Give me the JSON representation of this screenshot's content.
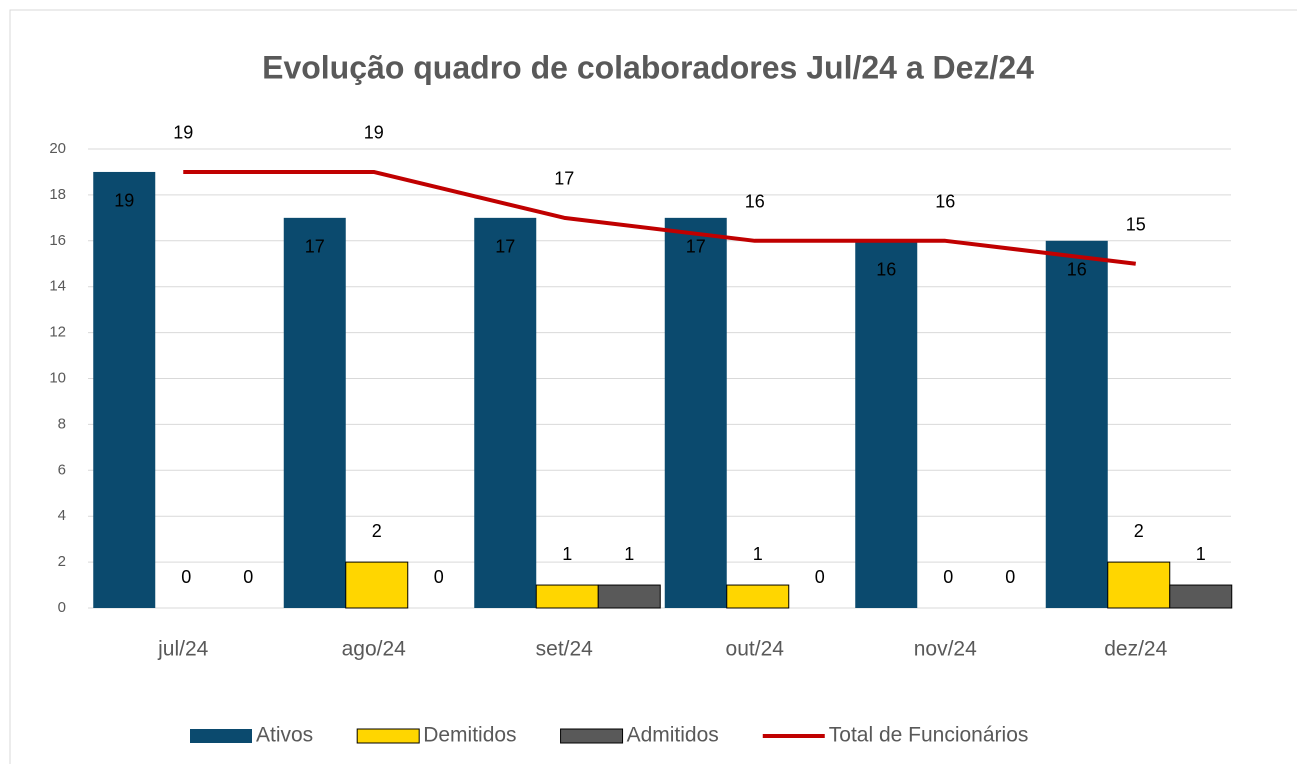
{
  "chart_data": {
    "type": "bar",
    "title": "Evolução quadro de colaboradores Jul/24 a Dez/24",
    "categories": [
      "jul/24",
      "ago/24",
      "set/24",
      "out/24",
      "nov/24",
      "dez/24"
    ],
    "series": [
      {
        "name": "Ativos",
        "type": "bar",
        "color": "#0b4a6e",
        "label_position": "inside",
        "values": [
          19,
          17,
          17,
          17,
          16,
          16
        ]
      },
      {
        "name": "Demitidos",
        "type": "bar",
        "color": "#ffd600",
        "label_position": "outside",
        "values": [
          0,
          2,
          1,
          1,
          0,
          2
        ]
      },
      {
        "name": "Admitidos",
        "type": "bar",
        "color": "#595959",
        "label_position": "outside",
        "values": [
          0,
          0,
          1,
          0,
          0,
          1
        ]
      },
      {
        "name": "Total de Funcionários",
        "type": "line",
        "color": "#c00000",
        "label_position": "above",
        "values": [
          19,
          19,
          17,
          16,
          16,
          15
        ]
      }
    ],
    "ylim": [
      0,
      20
    ],
    "yticks": [
      0,
      2,
      4,
      6,
      8,
      10,
      12,
      14,
      16,
      18,
      20
    ],
    "grid": true,
    "legend": "bottom"
  }
}
